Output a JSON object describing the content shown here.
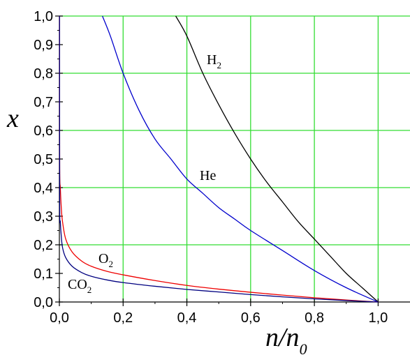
{
  "chart_data": {
    "type": "line",
    "xlabel": {
      "main": "n/n",
      "sub": "0"
    },
    "ylabel": "x",
    "xlim": [
      0,
      1.1
    ],
    "ylim": [
      0,
      1.0
    ],
    "x_ticks": [
      "0,0",
      "0,2",
      "0,4",
      "0,6",
      "0,8",
      "1,0"
    ],
    "y_ticks": [
      "0,0",
      "0,1",
      "0,2",
      "0,3",
      "0,4",
      "0,5",
      "0,6",
      "0,7",
      "0,8",
      "0,9",
      "1,0"
    ],
    "grid": true,
    "colors": {
      "grid": "#33dd33",
      "axis": "#000000",
      "H2": "#000000",
      "He": "#0000cc",
      "O2": "#ee0000",
      "CO2": "#000080"
    },
    "series": [
      {
        "name": "H",
        "sub": "2",
        "color": "#000000",
        "x": [
          0.365,
          0.4,
          0.45,
          0.5,
          0.55,
          0.6,
          0.65,
          0.7,
          0.75,
          0.8,
          0.85,
          0.9,
          0.95,
          1.0
        ],
        "y": [
          1.0,
          0.93,
          0.8,
          0.69,
          0.59,
          0.5,
          0.42,
          0.35,
          0.28,
          0.22,
          0.16,
          0.1,
          0.05,
          0.0
        ]
      },
      {
        "name": "He",
        "sub": "",
        "color": "#0000cc",
        "x": [
          0.135,
          0.16,
          0.2,
          0.25,
          0.3,
          0.35,
          0.4,
          0.45,
          0.5,
          0.55,
          0.6,
          0.7,
          0.8,
          0.9,
          1.0
        ],
        "y": [
          1.0,
          0.93,
          0.8,
          0.67,
          0.57,
          0.5,
          0.43,
          0.38,
          0.33,
          0.29,
          0.25,
          0.18,
          0.11,
          0.05,
          0.0
        ]
      },
      {
        "name": "O",
        "sub": "2",
        "color": "#ee0000",
        "x": [
          0.001,
          0.003,
          0.006,
          0.01,
          0.02,
          0.04,
          0.07,
          0.1,
          0.15,
          0.2,
          0.3,
          0.4,
          0.5,
          0.6,
          0.7,
          0.8,
          0.9,
          1.0
        ],
        "y": [
          0.48,
          0.4,
          0.33,
          0.28,
          0.22,
          0.175,
          0.143,
          0.125,
          0.107,
          0.095,
          0.075,
          0.058,
          0.045,
          0.034,
          0.024,
          0.015,
          0.007,
          0.0
        ]
      },
      {
        "name": "CO",
        "sub": "2",
        "color": "#000080",
        "x": [
          0.001,
          0.003,
          0.006,
          0.01,
          0.02,
          0.04,
          0.07,
          0.1,
          0.15,
          0.2,
          0.3,
          0.4,
          0.5,
          0.6,
          0.7,
          0.8,
          0.9,
          1.0
        ],
        "y": [
          0.35,
          0.28,
          0.23,
          0.19,
          0.155,
          0.125,
          0.103,
          0.09,
          0.077,
          0.068,
          0.055,
          0.044,
          0.035,
          0.026,
          0.018,
          0.011,
          0.005,
          0.0
        ]
      }
    ]
  }
}
